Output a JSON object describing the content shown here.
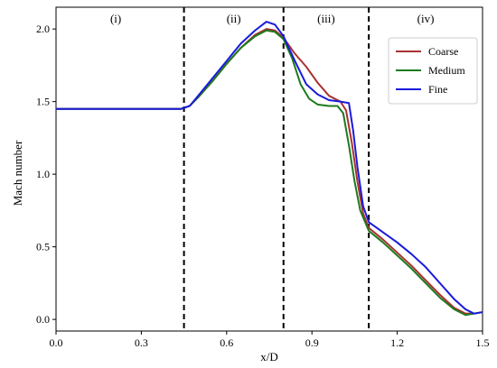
{
  "chart_data": {
    "type": "line",
    "xlabel": "x/D",
    "ylabel": "Mach number",
    "xlim": [
      0.0,
      1.5
    ],
    "ylim": [
      -0.08,
      2.15
    ],
    "xticks": [
      "0.0",
      "0.3",
      "0.6",
      "0.9",
      "1.2",
      "1.5"
    ],
    "yticks": [
      "0.0",
      "0.5",
      "1.0",
      "1.5",
      "2.0"
    ],
    "grid": false,
    "legend_position": "upper-right",
    "region_boundaries": [
      0.45,
      0.8,
      1.1
    ],
    "region_labels": [
      {
        "text": "(i)",
        "x": 0.21
      },
      {
        "text": "(ii)",
        "x": 0.625
      },
      {
        "text": "(iii)",
        "x": 0.95
      },
      {
        "text": "(iv)",
        "x": 1.3
      }
    ],
    "series": [
      {
        "name": "Coarse",
        "color": "#a83232",
        "points": [
          [
            0.0,
            1.45
          ],
          [
            0.44,
            1.45
          ],
          [
            0.47,
            1.47
          ],
          [
            0.5,
            1.53
          ],
          [
            0.55,
            1.64
          ],
          [
            0.6,
            1.76
          ],
          [
            0.65,
            1.87
          ],
          [
            0.7,
            1.96
          ],
          [
            0.74,
            2.0
          ],
          [
            0.77,
            1.99
          ],
          [
            0.8,
            1.94
          ],
          [
            0.84,
            1.83
          ],
          [
            0.88,
            1.74
          ],
          [
            0.92,
            1.63
          ],
          [
            0.96,
            1.54
          ],
          [
            1.0,
            1.5
          ],
          [
            1.02,
            1.44
          ],
          [
            1.04,
            1.22
          ],
          [
            1.06,
            0.95
          ],
          [
            1.08,
            0.73
          ],
          [
            1.1,
            0.63
          ],
          [
            1.15,
            0.55
          ],
          [
            1.2,
            0.46
          ],
          [
            1.25,
            0.37
          ],
          [
            1.3,
            0.27
          ],
          [
            1.35,
            0.17
          ],
          [
            1.4,
            0.08
          ],
          [
            1.44,
            0.04
          ],
          [
            1.47,
            0.04
          ],
          [
            1.5,
            0.05
          ]
        ]
      },
      {
        "name": "Medium",
        "color": "#1e7a1e",
        "points": [
          [
            0.0,
            1.45
          ],
          [
            0.44,
            1.45
          ],
          [
            0.47,
            1.47
          ],
          [
            0.5,
            1.53
          ],
          [
            0.55,
            1.64
          ],
          [
            0.6,
            1.76
          ],
          [
            0.65,
            1.87
          ],
          [
            0.7,
            1.95
          ],
          [
            0.74,
            1.99
          ],
          [
            0.77,
            1.98
          ],
          [
            0.8,
            1.93
          ],
          [
            0.83,
            1.8
          ],
          [
            0.86,
            1.62
          ],
          [
            0.89,
            1.52
          ],
          [
            0.92,
            1.48
          ],
          [
            0.96,
            1.47
          ],
          [
            0.99,
            1.47
          ],
          [
            1.01,
            1.42
          ],
          [
            1.03,
            1.2
          ],
          [
            1.05,
            0.95
          ],
          [
            1.07,
            0.75
          ],
          [
            1.1,
            0.61
          ],
          [
            1.15,
            0.53
          ],
          [
            1.2,
            0.44
          ],
          [
            1.25,
            0.35
          ],
          [
            1.3,
            0.25
          ],
          [
            1.35,
            0.15
          ],
          [
            1.4,
            0.07
          ],
          [
            1.44,
            0.03
          ],
          [
            1.47,
            0.04
          ],
          [
            1.5,
            0.05
          ]
        ]
      },
      {
        "name": "Fine",
        "color": "#1a1adb",
        "points": [
          [
            0.0,
            1.45
          ],
          [
            0.44,
            1.45
          ],
          [
            0.47,
            1.47
          ],
          [
            0.5,
            1.54
          ],
          [
            0.55,
            1.66
          ],
          [
            0.6,
            1.78
          ],
          [
            0.65,
            1.9
          ],
          [
            0.7,
            1.99
          ],
          [
            0.74,
            2.05
          ],
          [
            0.77,
            2.03
          ],
          [
            0.8,
            1.95
          ],
          [
            0.84,
            1.78
          ],
          [
            0.88,
            1.62
          ],
          [
            0.92,
            1.55
          ],
          [
            0.96,
            1.51
          ],
          [
            1.0,
            1.5
          ],
          [
            1.03,
            1.49
          ],
          [
            1.045,
            1.3
          ],
          [
            1.06,
            1.05
          ],
          [
            1.08,
            0.78
          ],
          [
            1.1,
            0.67
          ],
          [
            1.15,
            0.6
          ],
          [
            1.2,
            0.53
          ],
          [
            1.25,
            0.45
          ],
          [
            1.3,
            0.36
          ],
          [
            1.35,
            0.25
          ],
          [
            1.4,
            0.14
          ],
          [
            1.44,
            0.07
          ],
          [
            1.47,
            0.04
          ],
          [
            1.5,
            0.05
          ]
        ]
      }
    ]
  }
}
